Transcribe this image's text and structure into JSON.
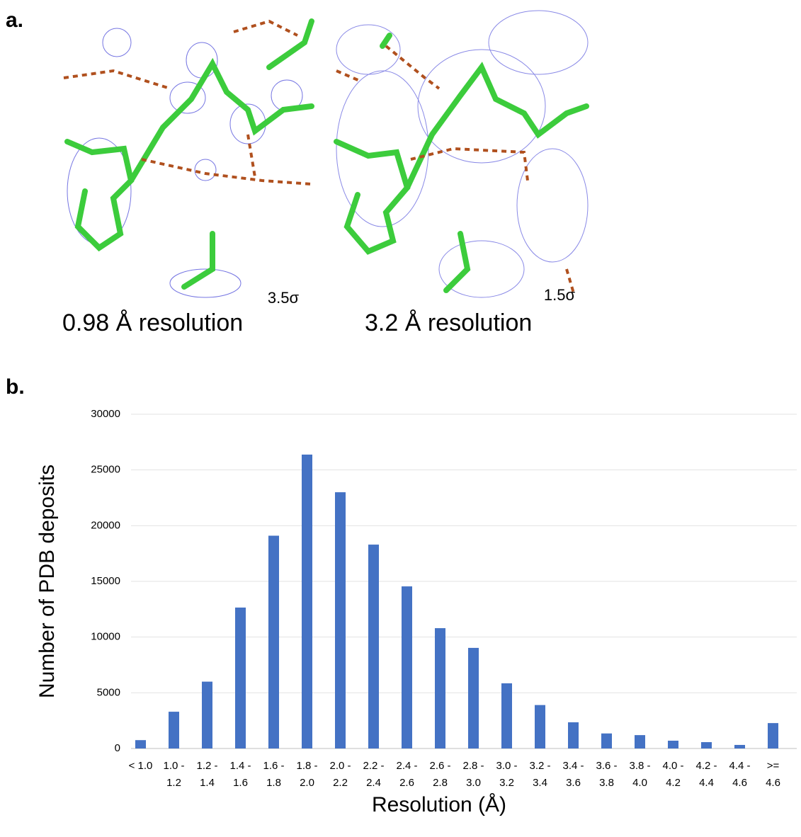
{
  "panel_a": {
    "label": "a.",
    "left": {
      "sigma": "3.5σ",
      "caption": "0.98 Å resolution"
    },
    "right": {
      "sigma": "1.5σ",
      "caption": "3.2 Å resolution"
    }
  },
  "panel_b": {
    "label": "b."
  },
  "chart_data": {
    "type": "bar",
    "x_label": "Resolution (Å)",
    "y_label": "Number of PDB deposits",
    "categories": [
      [
        "< 1.0"
      ],
      [
        "1.0 -",
        "1.2"
      ],
      [
        "1.2 -",
        "1.4"
      ],
      [
        "1.4 -",
        "1.6"
      ],
      [
        "1.6 -",
        "1.8"
      ],
      [
        "1.8 -",
        "2.0"
      ],
      [
        "2.0 -",
        "2.2"
      ],
      [
        "2.2 -",
        "2.4"
      ],
      [
        "2.4 -",
        "2.6"
      ],
      [
        "2.6 -",
        "2.8"
      ],
      [
        "2.8 -",
        "3.0"
      ],
      [
        "3.0 -",
        "3.2"
      ],
      [
        "3.2 -",
        "3.4"
      ],
      [
        "3.4 -",
        "3.6"
      ],
      [
        "3.6 -",
        "3.8"
      ],
      [
        "3.8 -",
        "4.0"
      ],
      [
        "4.0 -",
        "4.2"
      ],
      [
        "4.2 -",
        "4.4"
      ],
      [
        "4.4 -",
        "4.6"
      ],
      [
        ">=",
        "4.6"
      ]
    ],
    "values": [
      750,
      3300,
      6000,
      12650,
      19100,
      26380,
      23000,
      18300,
      14550,
      10800,
      9030,
      5850,
      3900,
      2350,
      1350,
      1200,
      700,
      570,
      320,
      2280
    ],
    "color": "#4472c4",
    "ylim": [
      0,
      30000
    ],
    "yticks": [
      0,
      5000,
      10000,
      15000,
      20000,
      25000,
      30000
    ],
    "grid": true
  }
}
